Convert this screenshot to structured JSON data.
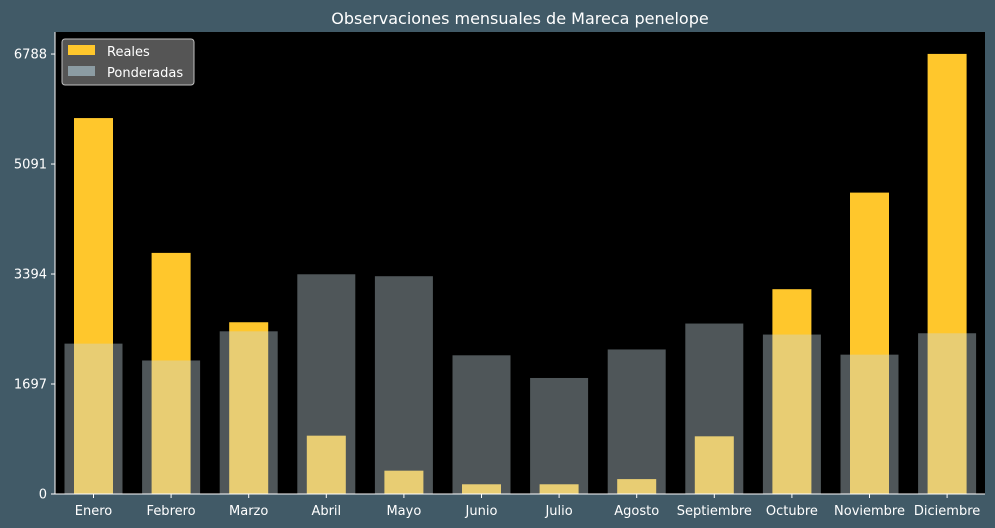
{
  "chart_data": {
    "type": "bar",
    "title": "Observaciones mensuales de Mareca penelope",
    "xlabel": "",
    "ylabel": "",
    "categories": [
      "Enero",
      "Febrero",
      "Marzo",
      "Abril",
      "Mayo",
      "Junio",
      "Julio",
      "Agosto",
      "Septiembre",
      "Octubre",
      "Noviembre",
      "Diciembre"
    ],
    "series": [
      {
        "name": "Reales",
        "color": "#ffc72c",
        "values": [
          5800,
          3720,
          2650,
          900,
          360,
          150,
          150,
          230,
          890,
          3160,
          4650,
          6790
        ]
      },
      {
        "name": "Ponderadas",
        "color": "#c5d8df",
        "values": [
          2320,
          2060,
          2510,
          3390,
          3360,
          2140,
          1790,
          2230,
          2630,
          2460,
          2150,
          2480
        ]
      }
    ],
    "ylim": [
      0,
      7128
    ],
    "yticks": [
      0,
      1697,
      3394,
      5091,
      6788
    ],
    "ytick_labels": [
      "0",
      "1697",
      "3394",
      "5091",
      "6788"
    ],
    "legend": {
      "position": "top-left"
    },
    "grid": false
  }
}
